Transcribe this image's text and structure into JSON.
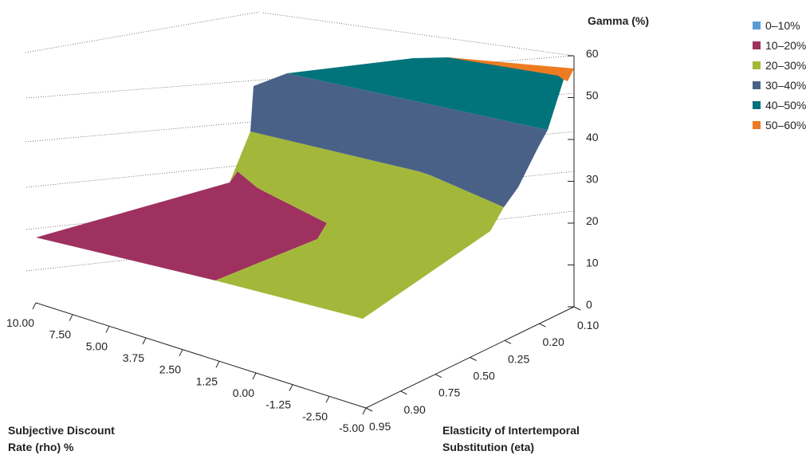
{
  "chart_data": {
    "type": "surface",
    "z_axis": {
      "title": "Gamma (%)",
      "ticks": [
        "0",
        "10",
        "20",
        "30",
        "40",
        "50",
        "60"
      ],
      "range": [
        0,
        60
      ]
    },
    "x_axis": {
      "title_lines": [
        "Subjective Discount",
        "Rate (rho) %"
      ],
      "ticks": [
        "10.00",
        "7.50",
        "5.00",
        "3.75",
        "2.50",
        "1.25",
        "0.00",
        "-1.25",
        "-2.50",
        "-5.00"
      ]
    },
    "y_axis": {
      "title_lines": [
        "Elasticity of Intertemporal",
        "Substitution (eta)"
      ],
      "ticks": [
        "0.10",
        "0.20",
        "0.25",
        "0.50",
        "0.75",
        "0.90",
        "0.95"
      ]
    },
    "legend": [
      {
        "label": "0–10%",
        "color": "#5b9bd5"
      },
      {
        "label": "10–20%",
        "color": "#9e3160"
      },
      {
        "label": "20–30%",
        "color": "#a3b83a"
      },
      {
        "label": "30–40%",
        "color": "#4a6187"
      },
      {
        "label": "40–50%",
        "color": "#00737b"
      },
      {
        "label": "50–60%",
        "color": "#ee7b22"
      }
    ],
    "gridlines": true
  }
}
